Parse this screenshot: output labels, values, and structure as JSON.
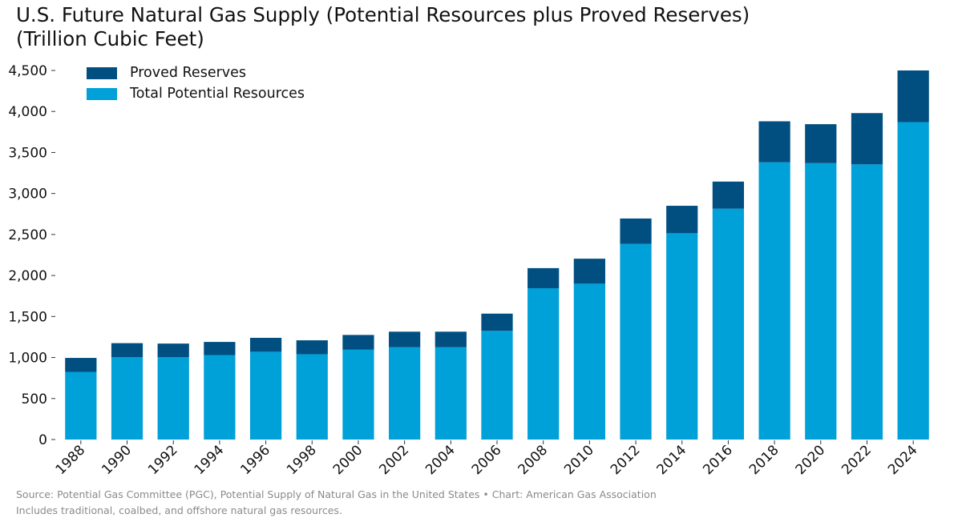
{
  "title_line1": "U.S. Future Natural Gas Supply (Potential Resources plus Proved Reserves)",
  "title_line2": "(Trillion Cubic Feet)",
  "footer": {
    "source": "Source: Potential Gas Committee (PGC), Potential Supply of Natural Gas in the United States • Chart: American Gas Association",
    "note": "Includes traditional, coalbed, and offshore natural gas resources."
  },
  "colors": {
    "proved_reserves": "#004f80",
    "total_potential_resources": "#00a0d9"
  },
  "chart_data": {
    "type": "bar",
    "stacked": true,
    "categories": [
      "1988",
      "1990",
      "1992",
      "1994",
      "1996",
      "1998",
      "2000",
      "2002",
      "2004",
      "2006",
      "2008",
      "2010",
      "2012",
      "2014",
      "2016",
      "2018",
      "2020",
      "2022",
      "2024"
    ],
    "series": [
      {
        "name": "Total Potential Resources",
        "values": [
          825,
          1005,
          1005,
          1030,
          1070,
          1040,
          1095,
          1125,
          1125,
          1325,
          1845,
          1900,
          2385,
          2515,
          2815,
          3380,
          3370,
          3355,
          3870
        ]
      },
      {
        "name": "Proved Reserves",
        "values": [
          170,
          170,
          165,
          160,
          170,
          170,
          180,
          190,
          190,
          210,
          245,
          305,
          310,
          335,
          330,
          500,
          475,
          625,
          630
        ]
      }
    ],
    "ylim": [
      0,
      4500
    ],
    "yticks": [
      0,
      500,
      1000,
      1500,
      2000,
      2500,
      3000,
      3500,
      4000,
      4500
    ],
    "ytick_labels": [
      "0",
      "500",
      "1,000",
      "1,500",
      "2,000",
      "2,500",
      "3,000",
      "3,500",
      "4,000",
      "4,500"
    ],
    "xlabel": "",
    "ylabel": "",
    "grid": false,
    "legend_position": "top-left"
  }
}
